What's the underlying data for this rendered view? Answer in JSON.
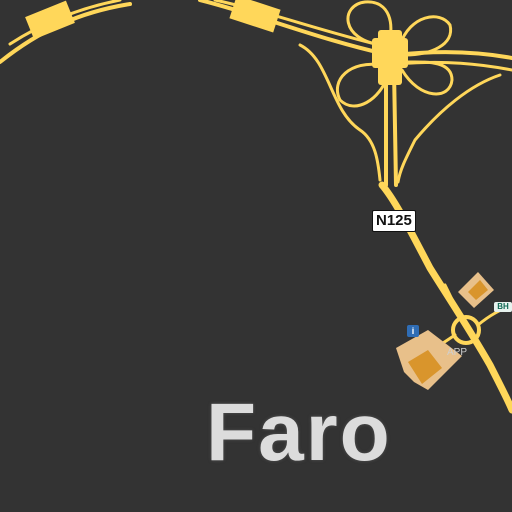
{
  "map": {
    "city_name": "Faro",
    "road_ref": "N125",
    "poi_label": "APP",
    "info_icon": "info-icon",
    "shield_icon": "hotel-icon",
    "colors": {
      "background": "#333333",
      "road": "#ffd75a",
      "building": "#e8c08a",
      "building_dark": "#d9952c"
    }
  }
}
